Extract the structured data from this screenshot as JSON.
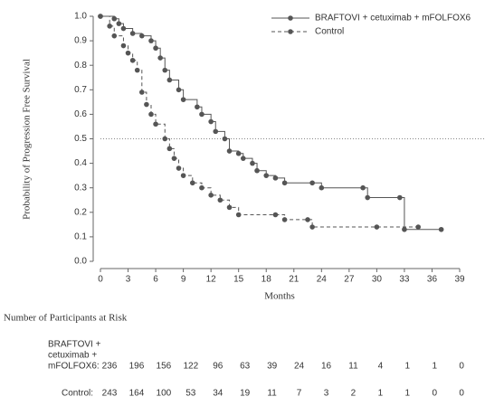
{
  "chart_data": {
    "type": "line",
    "step": true,
    "ylabel": "Probability of Progression Free Survival",
    "xlabel": "Months",
    "xlim": [
      0,
      39
    ],
    "xticks": [
      0,
      3,
      6,
      9,
      12,
      15,
      18,
      21,
      24,
      27,
      30,
      33,
      36,
      39
    ],
    "ylim": [
      0,
      1
    ],
    "yticks": [
      {
        "value": 0,
        "label": "0.0"
      },
      0.1,
      0.2,
      0.3,
      0.4,
      0.5,
      0.6,
      0.7,
      0.8,
      0.9,
      {
        "value": 1,
        "label": "1.0"
      }
    ],
    "reference_line": 0.5,
    "legend": "top-right",
    "series": [
      {
        "name": "BRAFTOVI + cetuximab + mFOLFOX6",
        "color": "#555555",
        "dashed": false,
        "x": [
          0,
          1.5,
          2,
          2.5,
          3.5,
          4.5,
          5.5,
          6,
          6.5,
          7,
          7.5,
          8.5,
          9,
          10.5,
          11,
          12,
          12.5,
          13.5,
          14,
          15,
          15.5,
          16.5,
          17,
          18,
          19,
          20,
          23,
          24,
          28.5,
          29,
          32.5,
          33,
          37
        ],
        "values": [
          1.0,
          0.99,
          0.97,
          0.95,
          0.93,
          0.92,
          0.9,
          0.87,
          0.83,
          0.78,
          0.74,
          0.7,
          0.66,
          0.63,
          0.6,
          0.57,
          0.53,
          0.5,
          0.45,
          0.44,
          0.42,
          0.4,
          0.37,
          0.35,
          0.34,
          0.32,
          0.32,
          0.3,
          0.3,
          0.26,
          0.26,
          0.13,
          0.13
        ]
      },
      {
        "name": "Control",
        "color": "#555555",
        "dashed": true,
        "x": [
          0,
          1,
          1.5,
          2.5,
          3,
          3.5,
          4,
          4.5,
          5,
          5.5,
          6,
          7,
          7.5,
          8,
          8.5,
          9,
          10,
          11,
          12,
          13,
          14,
          15,
          19,
          20,
          22.5,
          23,
          30,
          34.5
        ],
        "values": [
          1.0,
          0.96,
          0.92,
          0.88,
          0.85,
          0.82,
          0.78,
          0.69,
          0.64,
          0.6,
          0.56,
          0.5,
          0.46,
          0.42,
          0.38,
          0.35,
          0.32,
          0.3,
          0.27,
          0.25,
          0.22,
          0.19,
          0.19,
          0.17,
          0.17,
          0.14,
          0.14,
          0.14
        ]
      }
    ],
    "risk_table": {
      "title": "Number of Participants at Risk",
      "rows": [
        {
          "label": [
            "BRAFTOVI +",
            "cetuximab +",
            "mFOLFOX6:"
          ],
          "values": [
            236,
            196,
            156,
            122,
            96,
            63,
            39,
            24,
            16,
            11,
            4,
            1,
            1,
            0
          ]
        },
        {
          "label": [
            "Control:"
          ],
          "values": [
            243,
            164,
            100,
            53,
            34,
            19,
            11,
            7,
            3,
            2,
            1,
            1,
            0,
            0
          ]
        }
      ]
    }
  }
}
